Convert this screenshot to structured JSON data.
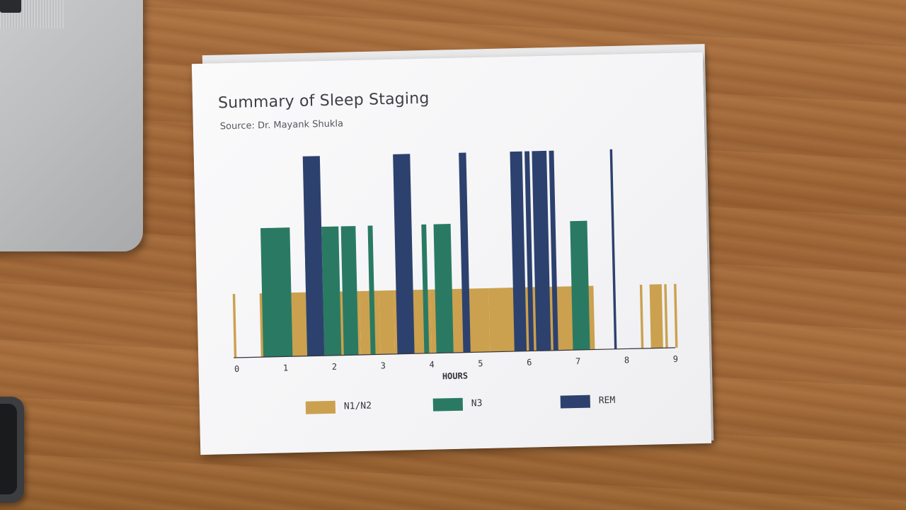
{
  "title": "Summary of Sleep Staging",
  "subtitle": "Source: Dr. Mayank Shukla",
  "colors": {
    "n1n2": "#cba14f",
    "n3": "#2a7a63",
    "rem": "#2d416e",
    "axis": "#33343a"
  },
  "chart_data": {
    "type": "bar",
    "title": "Summary of Sleep Staging",
    "subtitle": "Source: Dr. Mayank Shukla",
    "xlabel": "HOURS",
    "ylabel": "",
    "xlim": [
      0,
      9
    ],
    "x_ticks": [
      "0",
      "1",
      "2",
      "3",
      "4",
      "5",
      "6",
      "7",
      "8",
      "9"
    ],
    "legend": [
      {
        "name": "N1/N2",
        "color": "#cba14f"
      },
      {
        "name": "N3",
        "color": "#2a7a63"
      },
      {
        "name": "REM",
        "color": "#2d416e"
      }
    ],
    "legend_position": "bottom",
    "grid": false,
    "series": [
      {
        "name": "N1/N2",
        "level": 1,
        "segments": [
          [
            -0.05,
            0.0
          ],
          [
            0.5,
            1.15
          ],
          [
            1.15,
            1.45
          ],
          [
            1.45,
            2.25
          ],
          [
            2.25,
            2.55
          ],
          [
            2.55,
            2.95
          ],
          [
            2.95,
            3.25
          ],
          [
            3.25,
            4.0
          ],
          [
            4.0,
            4.4
          ],
          [
            4.4,
            5.2
          ],
          [
            5.2,
            5.85
          ],
          [
            5.85,
            7.35
          ],
          [
            8.3,
            8.35
          ],
          [
            8.5,
            8.75
          ],
          [
            8.8,
            8.85
          ],
          [
            9.0,
            9.05
          ]
        ]
      },
      {
        "name": "N3",
        "level": 2,
        "segments": [
          [
            0.55,
            1.15
          ],
          [
            1.45,
            1.52
          ],
          [
            1.8,
            2.15
          ],
          [
            2.2,
            2.5
          ],
          [
            2.75,
            2.85
          ],
          [
            3.85,
            3.95
          ],
          [
            4.1,
            4.45
          ],
          [
            6.9,
            7.25
          ]
        ]
      },
      {
        "name": "REM",
        "level": 3,
        "segments": [
          [
            1.45,
            1.8
          ],
          [
            3.3,
            3.65
          ],
          [
            4.65,
            4.8
          ],
          [
            5.7,
            5.95
          ],
          [
            6.0,
            6.1
          ],
          [
            6.15,
            6.45
          ],
          [
            6.5,
            6.6
          ],
          [
            7.75,
            7.8
          ]
        ]
      }
    ]
  }
}
